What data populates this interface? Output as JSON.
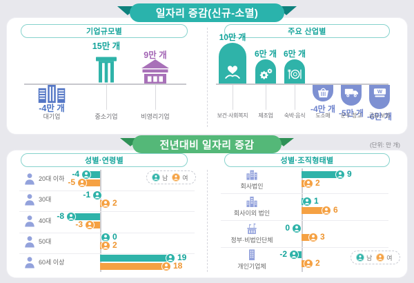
{
  "top_ribbon": "일자리 증감(신규-소멸)",
  "bottom_ribbon": "전년대비 일자리 증감",
  "unit_note": "(단위: 만 개)",
  "legend": {
    "male": "남",
    "female": "여"
  },
  "colors": {
    "teal": "#2fb3a9",
    "teal_text": "#12a39a",
    "orange": "#f5a143",
    "orange_text": "#ee9530",
    "periwinkle": "#7d90d2",
    "periwinkle_text": "#6d82cc",
    "purple": "#a871b8",
    "purple_text": "#a264b4",
    "blue": "#5577c5",
    "blue_text": "#4b73c4",
    "icon_periwinkle": "#93a2dc",
    "ribbon_teal": "#2ab3ac",
    "ribbon_teal_dark": "#0d817d",
    "ribbon_green": "#54b878",
    "ribbon_green_dark": "#2e9156",
    "label_gray": "#6e6e73"
  },
  "company_size": {
    "title": "기업규모별",
    "items": [
      {
        "label": "대기업",
        "value": -4,
        "value_label": "-4만 개"
      },
      {
        "label": "중소기업",
        "value": 15,
        "value_label": "15만 개"
      },
      {
        "label": "비영리기업",
        "value": 9,
        "value_label": "9만 개"
      }
    ]
  },
  "industry": {
    "title": "주요 산업별",
    "items": [
      {
        "label": "보건·사회복지",
        "value": 10,
        "value_label": "10만 개"
      },
      {
        "label": "제조업",
        "value": 6,
        "value_label": "6만 개"
      },
      {
        "label": "숙박·음식",
        "value": 6,
        "value_label": "6만 개"
      },
      {
        "label": "도소매",
        "value": -4,
        "value_label": "-4만 개"
      },
      {
        "label": "운수·창고",
        "value": -5,
        "value_label": "-5만 개"
      },
      {
        "label": "금융·보험",
        "value": -6,
        "value_label": "-6만 개"
      }
    ]
  },
  "gender_age": {
    "title": "성별·연령별",
    "rows": [
      {
        "label": "20대 이하",
        "male": -4,
        "female": -5
      },
      {
        "label": "30대",
        "male": -1,
        "female": 2
      },
      {
        "label": "40대",
        "male": -8,
        "female": -3
      },
      {
        "label": "50대",
        "male": 0,
        "female": 2
      },
      {
        "label": "60세 이상",
        "male": 19,
        "female": 18
      }
    ]
  },
  "gender_org": {
    "title": "성별·조직형태별",
    "rows": [
      {
        "label": "회사법인",
        "male": 9,
        "female": 2
      },
      {
        "label": "회사이외 법인",
        "male": 1,
        "female": 6
      },
      {
        "label": "정부·비법인단체",
        "male": 0,
        "female": 3
      },
      {
        "label": "개인기업체",
        "male": -2,
        "female": 2
      }
    ]
  },
  "chart_data": [
    {
      "type": "bar",
      "title": "일자리 증감(신규-소멸) — 기업규모별",
      "unit": "만 개",
      "categories": [
        "대기업",
        "중소기업",
        "비영리기업"
      ],
      "values": [
        -4,
        15,
        9
      ]
    },
    {
      "type": "bar",
      "title": "일자리 증감(신규-소멸) — 주요 산업별",
      "unit": "만 개",
      "categories": [
        "보건·사회복지",
        "제조업",
        "숙박·음식",
        "도소매",
        "운수·창고",
        "금융·보험"
      ],
      "values": [
        10,
        6,
        6,
        -4,
        -5,
        -6
      ]
    },
    {
      "type": "bar",
      "orientation": "horizontal",
      "title": "전년대비 일자리 증감 — 성별·연령별",
      "unit": "만 개",
      "categories": [
        "20대 이하",
        "30대",
        "40대",
        "50대",
        "60세 이상"
      ],
      "series": [
        {
          "name": "남",
          "values": [
            -4,
            -1,
            -8,
            0,
            19
          ]
        },
        {
          "name": "여",
          "values": [
            -5,
            2,
            -3,
            2,
            18
          ]
        }
      ]
    },
    {
      "type": "bar",
      "orientation": "horizontal",
      "title": "전년대비 일자리 증감 — 성별·조직형태별",
      "unit": "만 개",
      "categories": [
        "회사법인",
        "회사이외 법인",
        "정부·비법인단체",
        "개인기업체"
      ],
      "series": [
        {
          "name": "남",
          "values": [
            9,
            1,
            0,
            -2
          ]
        },
        {
          "name": "여",
          "values": [
            2,
            6,
            3,
            2
          ]
        }
      ]
    }
  ]
}
